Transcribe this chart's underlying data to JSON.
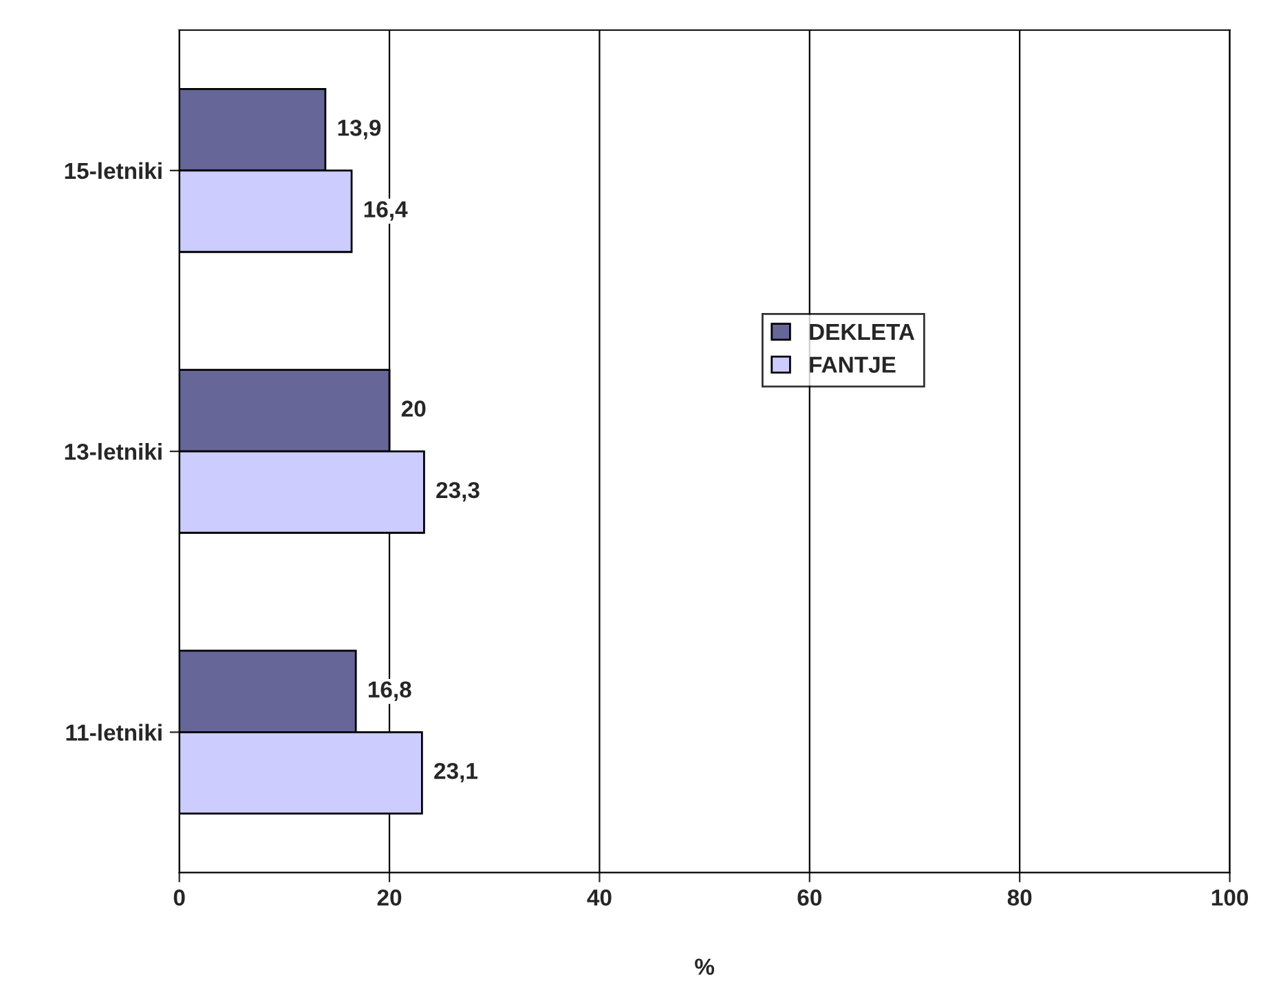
{
  "chart_data": {
    "type": "bar",
    "orientation": "horizontal",
    "xlabel": "%",
    "categories": [
      "15-letniki",
      "13-letniki",
      "11-letniki"
    ],
    "series": [
      {
        "name": "DEKLETA",
        "color": "#666699",
        "values": [
          13.9,
          20,
          16.8
        ],
        "value_labels": [
          "13,9",
          "20",
          "16,8"
        ]
      },
      {
        "name": "FANTJE",
        "color": "#ccccff",
        "values": [
          16.4,
          23.3,
          23.1
        ],
        "value_labels": [
          "16,4",
          "23,3",
          "23,1"
        ]
      }
    ],
    "xlim": [
      0,
      100
    ],
    "xticks": [
      0,
      20,
      40,
      60,
      80,
      100
    ],
    "grid": "x",
    "legend": "right"
  }
}
